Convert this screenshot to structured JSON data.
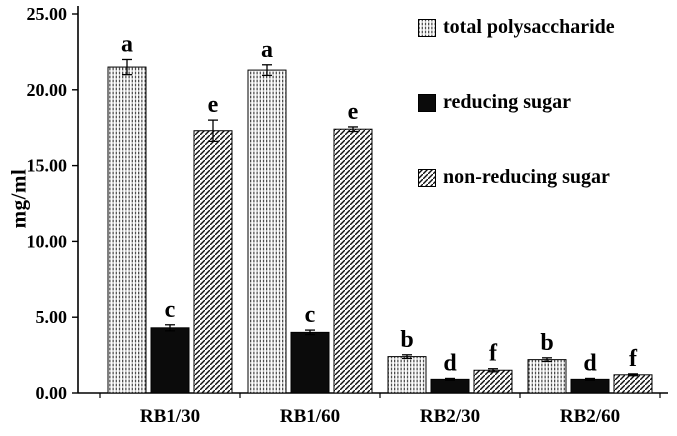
{
  "chart_data": {
    "type": "bar",
    "title": "",
    "xlabel": "",
    "ylabel": "mg/ml",
    "ylim": [
      0,
      25
    ],
    "ytick_values": [
      0,
      5,
      10,
      15,
      20,
      25
    ],
    "ytick_labels": [
      "0.00",
      "5.00",
      "10.00",
      "15.00",
      "20.00",
      "25.00"
    ],
    "categories": [
      "RB1/30",
      "RB1/60",
      "RB2/30",
      "RB2/60"
    ],
    "series": [
      {
        "name": "total polysaccharide",
        "pattern": "vertical-stripes",
        "values": [
          21.5,
          21.3,
          2.4,
          2.2
        ],
        "errors": [
          0.5,
          0.35,
          0.12,
          0.12
        ],
        "letters": [
          "a",
          "a",
          "b",
          "b"
        ]
      },
      {
        "name": "reducing sugar",
        "pattern": "solid-black",
        "values": [
          4.3,
          4.0,
          0.9,
          0.9
        ],
        "errors": [
          0.2,
          0.15,
          0.06,
          0.06
        ],
        "letters": [
          "c",
          "c",
          "d",
          "d"
        ]
      },
      {
        "name": "non-reducing sugar",
        "pattern": "diagonal-hatch",
        "values": [
          17.3,
          17.4,
          1.5,
          1.2
        ],
        "errors": [
          0.7,
          0.15,
          0.1,
          0.06
        ],
        "letters": [
          "e",
          "e",
          "f",
          "f"
        ]
      }
    ],
    "legend_position": "top-right",
    "grid": false,
    "colors": {
      "bar_outline": "#000000",
      "solid_bar": "#0b0b0b",
      "text": "#000000",
      "background": "#ffffff"
    }
  }
}
